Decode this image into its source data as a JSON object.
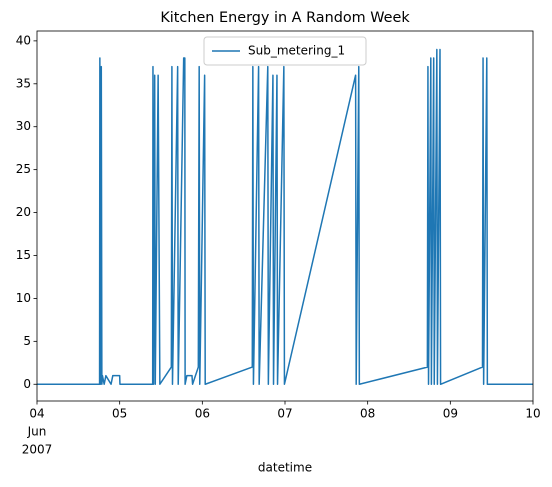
{
  "chart_data": {
    "type": "line",
    "title": "Kitchen Energy in A Random Week",
    "x_label": "datetime",
    "x_month_label": "Jun",
    "x_year_label": "2007",
    "legend": "upper center",
    "x": [
      "2007-06-04T00:00",
      "2007-06-04T18:10",
      "2007-06-04T18:15",
      "2007-06-04T18:25",
      "2007-06-04T18:40",
      "2007-06-04T18:50",
      "2007-06-04T19:00",
      "2007-06-04T19:30",
      "2007-06-04T20:00",
      "2007-06-04T21:30",
      "2007-06-04T22:00",
      "2007-06-05T00:00",
      "2007-06-05T00:05",
      "2007-06-05T09:35",
      "2007-06-05T09:40",
      "2007-06-05T09:50",
      "2007-06-05T10:10",
      "2007-06-05T10:20",
      "2007-06-05T11:10",
      "2007-06-05T11:40",
      "2007-06-05T15:00",
      "2007-06-05T15:10",
      "2007-06-05T15:20",
      "2007-06-05T16:50",
      "2007-06-05T17:00",
      "2007-06-05T18:35",
      "2007-06-05T18:55",
      "2007-06-05T19:00",
      "2007-06-05T19:30",
      "2007-06-05T21:00",
      "2007-06-05T21:10",
      "2007-06-05T22:50",
      "2007-06-05T23:05",
      "2007-06-05T23:15",
      "2007-06-06T00:40",
      "2007-06-06T00:50",
      "2007-06-06T14:30",
      "2007-06-06T14:40",
      "2007-06-06T14:50",
      "2007-06-06T16:20",
      "2007-06-06T16:30",
      "2007-06-06T19:00",
      "2007-06-06T19:10",
      "2007-06-06T20:30",
      "2007-06-06T20:40",
      "2007-06-06T21:40",
      "2007-06-06T21:50",
      "2007-06-06T23:40",
      "2007-06-06T23:50",
      "2007-06-07T20:30",
      "2007-06-07T20:40",
      "2007-06-07T21:25",
      "2007-06-07T21:35",
      "2007-06-08T17:20",
      "2007-06-08T17:30",
      "2007-06-08T17:40",
      "2007-06-08T18:20",
      "2007-06-08T18:30",
      "2007-06-08T19:10",
      "2007-06-08T19:20",
      "2007-06-08T20:05",
      "2007-06-08T20:15",
      "2007-06-08T21:00",
      "2007-06-08T21:10",
      "2007-06-09T09:20",
      "2007-06-09T09:30",
      "2007-06-09T09:40",
      "2007-06-09T10:35",
      "2007-06-09T10:45",
      "2007-06-10T00:00"
    ],
    "series": [
      {
        "name": "Sub_metering_1",
        "color": "#1f77b4",
        "values": [
          0,
          0,
          38,
          0,
          37,
          0,
          1,
          0,
          1,
          0,
          1,
          1,
          0,
          0,
          37,
          0,
          36,
          0,
          36,
          0,
          2,
          37,
          0,
          37,
          0,
          38,
          38,
          0,
          1,
          1,
          0,
          2,
          37,
          0,
          36,
          0,
          2,
          37,
          0,
          37,
          0,
          37,
          0,
          36,
          0,
          36,
          0,
          37,
          0,
          36,
          0,
          37,
          0,
          2,
          37,
          0,
          38,
          0,
          38,
          0,
          39,
          0,
          39,
          0,
          2,
          38,
          0,
          38,
          0,
          0
        ]
      }
    ],
    "xlim": [
      "2007-06-04T00:00",
      "2007-06-10T00:00"
    ],
    "xticks": [
      {
        "value": "2007-06-04T00:00",
        "label": "04"
      },
      {
        "value": "2007-06-05T00:00",
        "label": "05"
      },
      {
        "value": "2007-06-06T00:00",
        "label": "06"
      },
      {
        "value": "2007-06-07T00:00",
        "label": "07"
      },
      {
        "value": "2007-06-08T00:00",
        "label": "08"
      },
      {
        "value": "2007-06-09T00:00",
        "label": "09"
      },
      {
        "value": "2007-06-10T00:00",
        "label": "10"
      }
    ],
    "ylim": [
      -1.95,
      41.15
    ],
    "yticks": [
      0,
      5,
      10,
      15,
      20,
      25,
      30,
      35,
      40
    ]
  }
}
